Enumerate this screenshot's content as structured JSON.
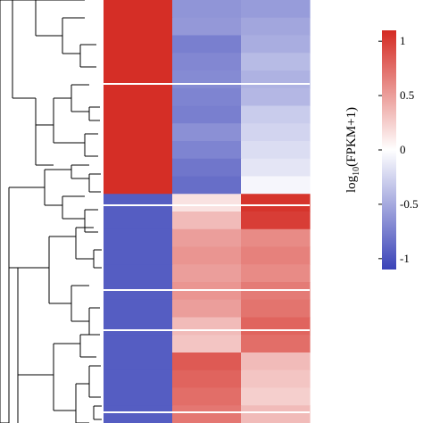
{
  "chart_data": {
    "type": "heatmap",
    "title": "",
    "colorbar": {
      "label_main": "log",
      "label_sub": "10",
      "label_rest": "(FPKM+1)",
      "range": [
        -1.1,
        1.1
      ],
      "ticks": [
        1,
        0.5,
        0,
        -0.5,
        -1
      ],
      "tick_labels": [
        "1",
        "0.5",
        "0",
        "-0.5",
        "-1"
      ],
      "colors": {
        "low": "#3a43b8",
        "mid": "#ffffff",
        "high": "#d42a22"
      }
    },
    "columns": 3,
    "rows": [
      [
        1.08,
        -0.62,
        -0.58
      ],
      [
        1.08,
        -0.6,
        -0.52
      ],
      [
        1.08,
        -0.75,
        -0.48
      ],
      [
        1.08,
        -0.7,
        -0.4
      ],
      [
        1.08,
        -0.68,
        -0.45
      ],
      [
        1.08,
        -0.72,
        -0.42
      ],
      [
        1.08,
        -0.75,
        -0.3
      ],
      [
        1.08,
        -0.65,
        -0.25
      ],
      [
        1.08,
        -0.72,
        -0.2
      ],
      [
        1.08,
        -0.8,
        -0.15
      ],
      [
        1.08,
        -0.85,
        -0.05
      ],
      [
        -0.95,
        0.15,
        1.05
      ],
      [
        -0.95,
        0.35,
        1.0
      ],
      [
        -0.95,
        0.5,
        0.6
      ],
      [
        -0.95,
        0.55,
        0.65
      ],
      [
        -0.95,
        0.5,
        0.6
      ],
      [
        -0.95,
        0.55,
        0.68
      ],
      [
        -0.95,
        0.5,
        0.72
      ],
      [
        -0.95,
        0.35,
        0.8
      ],
      [
        -0.95,
        0.3,
        0.75
      ],
      [
        -0.95,
        0.85,
        0.35
      ],
      [
        -0.95,
        0.8,
        0.3
      ],
      [
        -0.95,
        0.75,
        0.25
      ],
      [
        -0.95,
        0.7,
        0.35
      ]
    ]
  }
}
